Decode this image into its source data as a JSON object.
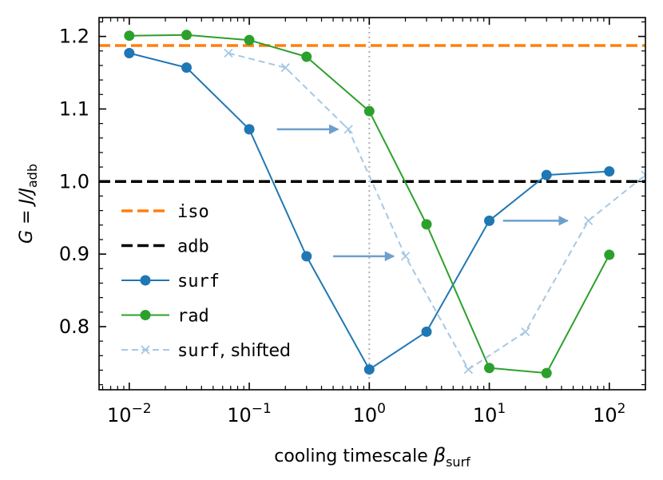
{
  "chart_data": {
    "type": "line",
    "xscale": "log",
    "xlim": [
      0.0056,
      200
    ],
    "ylim": [
      0.713,
      1.226
    ],
    "xlabel": "cooling timescale",
    "xlabel_symbol": "β",
    "xlabel_sub": "surf",
    "ylabel": "G = J/J",
    "ylabel_sub": "adb",
    "xticks": [
      {
        "value": 0.01,
        "base": "10",
        "exp": "−2"
      },
      {
        "value": 0.1,
        "base": "10",
        "exp": "−1"
      },
      {
        "value": 1,
        "base": "10",
        "exp": "0"
      },
      {
        "value": 10,
        "base": "10",
        "exp": "1"
      },
      {
        "value": 100,
        "base": "10",
        "exp": "2"
      }
    ],
    "yticks": [
      {
        "value": 0.8,
        "label": "0.8"
      },
      {
        "value": 0.9,
        "label": "0.9"
      },
      {
        "value": 1.0,
        "label": "1.0"
      },
      {
        "value": 1.1,
        "label": "1.1"
      },
      {
        "value": 1.2,
        "label": "1.2"
      }
    ],
    "vline": {
      "x": 1,
      "color": "#b0b0b0"
    },
    "hlines": [
      {
        "name": "iso",
        "y": 1.1875,
        "color": "#ff7f0e"
      },
      {
        "name": "adb",
        "y": 1.0,
        "color": "#000000"
      }
    ],
    "series": [
      {
        "name": "surf",
        "color": "#1f77b4",
        "x": [
          0.01,
          0.03,
          0.1,
          0.3,
          1,
          3,
          10,
          30,
          100
        ],
        "y": [
          1.177,
          1.157,
          1.072,
          0.897,
          0.741,
          0.793,
          0.946,
          1.009,
          1.014
        ]
      },
      {
        "name": "rad",
        "color": "#2ca02c",
        "x": [
          0.01,
          0.03,
          0.1,
          0.3,
          1,
          3,
          10,
          30,
          100
        ],
        "y": [
          1.201,
          1.202,
          1.195,
          1.172,
          1.097,
          0.941,
          0.743,
          0.736,
          0.899
        ]
      },
      {
        "name": "surf, shifted",
        "color": "#a6c8e4",
        "x": [
          0.067,
          0.2,
          0.67,
          2,
          6.7,
          20,
          67,
          200
        ],
        "y": [
          1.177,
          1.157,
          1.072,
          0.897,
          0.741,
          0.793,
          0.946,
          1.009
        ]
      }
    ],
    "arrows": [
      {
        "x_from": 0.17,
        "x_to": 0.55,
        "y": 1.072
      },
      {
        "x_from": 0.5,
        "x_to": 1.6,
        "y": 0.897
      },
      {
        "x_from": 13,
        "x_to": 45,
        "y": 0.946
      }
    ],
    "legend": {
      "position": "lower-left",
      "entries": [
        {
          "label": "iso"
        },
        {
          "label": "adb"
        },
        {
          "label": "surf"
        },
        {
          "label": "rad"
        },
        {
          "label_mono": "surf",
          "label_sans": ", shifted"
        }
      ]
    }
  }
}
